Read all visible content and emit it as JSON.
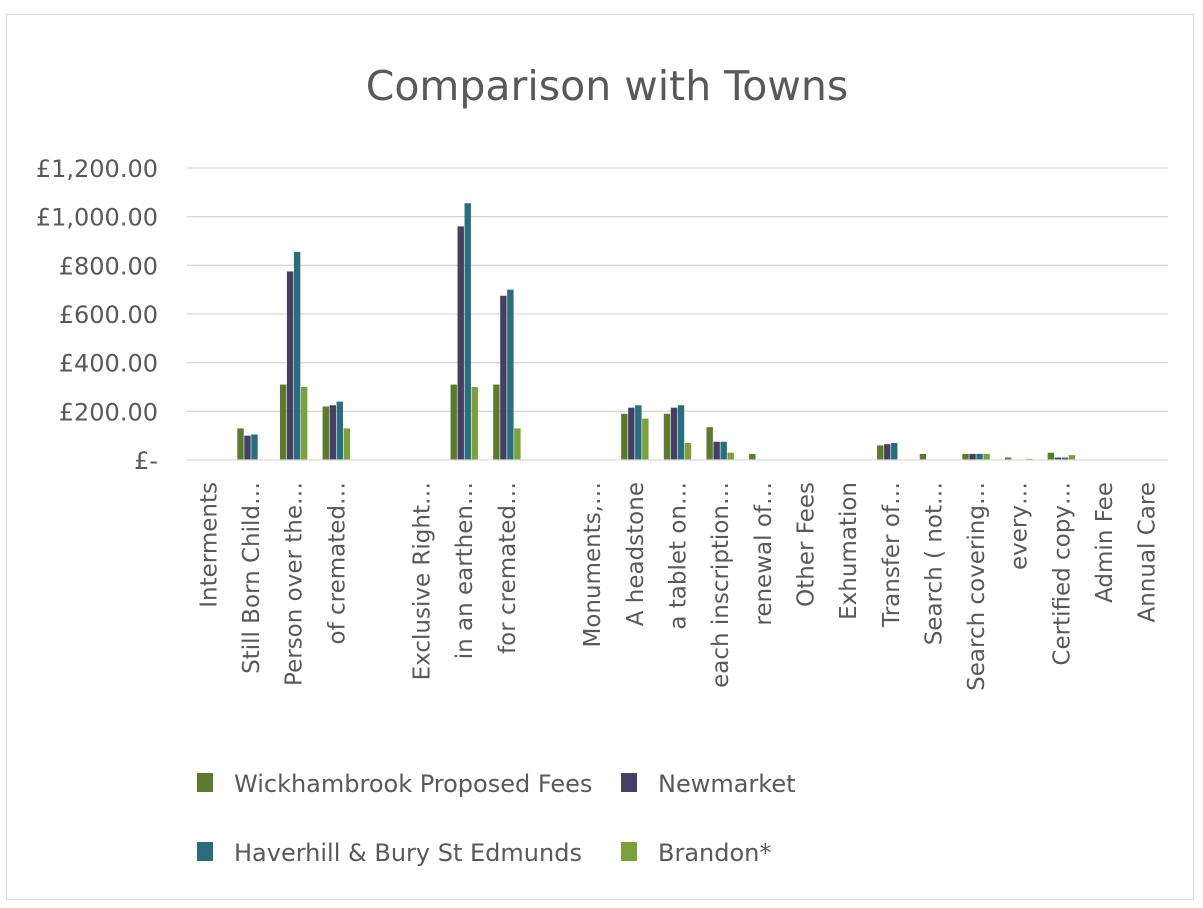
{
  "chart_data": {
    "type": "bar",
    "title": "Comparison with Towns",
    "xlabel": "",
    "ylabel": "",
    "ylim": [
      0,
      1200
    ],
    "yticks": [
      0,
      200,
      400,
      600,
      800,
      1000,
      1200
    ],
    "ytick_labels": [
      "£-",
      "£200.00",
      "£400.00",
      "£600.00",
      "£800.00",
      "£1,000.00",
      "£1,200.00"
    ],
    "grid": true,
    "legend_position": "bottom",
    "categories": [
      "Interments",
      "Still Born Child…",
      "Person over the…",
      "of cremated…",
      "",
      "Exclusive Right…",
      "in an earthen…",
      "for cremated…",
      "",
      "Monuments,…",
      "A headstone",
      "a tablet on…",
      "each inscription…",
      "renewal of…",
      "Other Fees",
      "Exhumation",
      "Transfer of…",
      "Search ( not…",
      "Search covering…",
      "every…",
      "Certified copy…",
      "Admin Fee",
      "Annual Care"
    ],
    "series": [
      {
        "name": "Wickhambrook Proposed Fees",
        "color": "#5b7a2e",
        "values": [
          0,
          130,
          310,
          220,
          0,
          0,
          310,
          310,
          0,
          0,
          190,
          190,
          135,
          25,
          0,
          0,
          60,
          25,
          25,
          10,
          30,
          0,
          0
        ]
      },
      {
        "name": "Newmarket",
        "color": "#463f64",
        "values": [
          0,
          100,
          775,
          225,
          0,
          0,
          960,
          675,
          0,
          0,
          215,
          215,
          75,
          0,
          0,
          0,
          65,
          0,
          25,
          0,
          10,
          0,
          0
        ]
      },
      {
        "name": "Haverhill & Bury St Edmunds",
        "color": "#2a6d7d",
        "values": [
          0,
          105,
          855,
          240,
          0,
          0,
          1055,
          700,
          0,
          0,
          225,
          225,
          75,
          0,
          0,
          0,
          70,
          0,
          25,
          0,
          10,
          0,
          0
        ]
      },
      {
        "name": "Brandon*",
        "color": "#7aa13d",
        "values": [
          0,
          0,
          300,
          130,
          0,
          0,
          300,
          130,
          0,
          0,
          170,
          70,
          30,
          0,
          0,
          0,
          0,
          0,
          25,
          5,
          20,
          0,
          0
        ]
      }
    ]
  }
}
